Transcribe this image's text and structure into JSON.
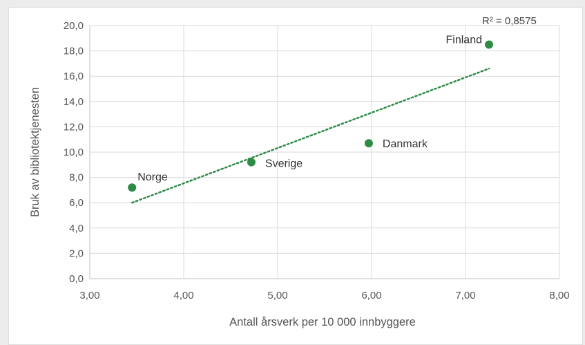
{
  "chart_data": {
    "type": "scatter",
    "xlabel": "Antall årsverk per 10 000 innbyggere",
    "ylabel": "Bruk av bibliotektjenesten",
    "xlim": [
      3.0,
      8.0
    ],
    "ylim": [
      0.0,
      20.0
    ],
    "x_ticks": [
      "3,00",
      "4,00",
      "5,00",
      "6,00",
      "7,00",
      "8,00"
    ],
    "y_ticks": [
      "0,0",
      "2,0",
      "4,0",
      "6,0",
      "8,0",
      "10,0",
      "12,0",
      "14,0",
      "16,0",
      "18,0",
      "20,0"
    ],
    "grid": true,
    "points": [
      {
        "label": "Norge",
        "x": 3.45,
        "y": 7.2
      },
      {
        "label": "Sverige",
        "x": 4.72,
        "y": 9.2
      },
      {
        "label": "Danmark",
        "x": 5.97,
        "y": 10.7
      },
      {
        "label": "Finland",
        "x": 7.25,
        "y": 18.5
      }
    ],
    "trendline": {
      "x": [
        3.45,
        7.25
      ],
      "y": [
        6.0,
        16.6
      ],
      "r2_label": "R² = 0,8575"
    },
    "colors": {
      "point": "#2e8b46",
      "trendline": "#2e8b46",
      "grid": "#d9d9d9",
      "axis": "#bfbfbf"
    }
  }
}
